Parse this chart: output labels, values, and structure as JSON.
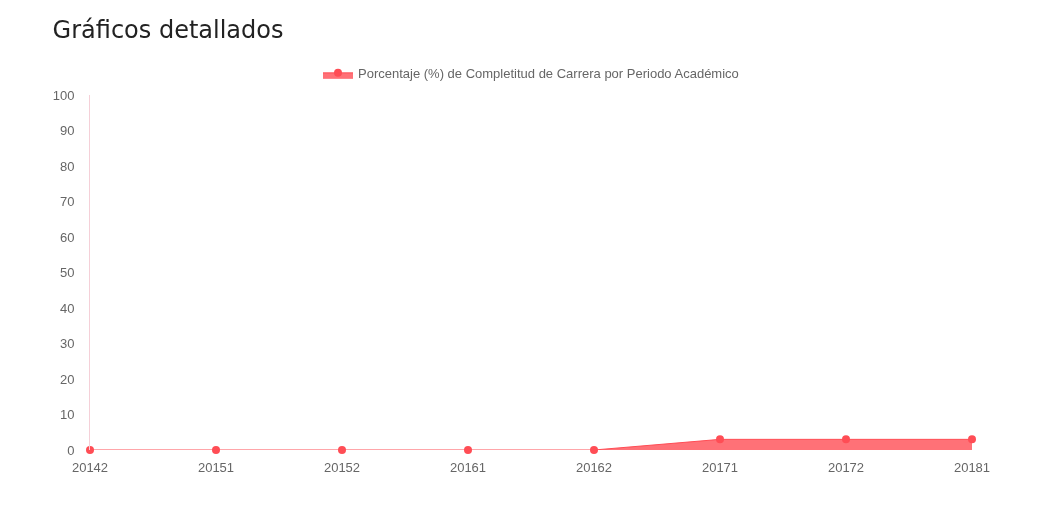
{
  "chart_data": {
    "type": "area",
    "title": "Gráficos detallados",
    "categories": [
      "20142",
      "20151",
      "20152",
      "20161",
      "20162",
      "20171",
      "20172",
      "20181"
    ],
    "series": [
      {
        "name": "Porcentaje (%) de Completitud de Carrera por Periodo Académico",
        "color": "#ff4d55",
        "values": [
          0,
          0,
          0,
          0,
          0,
          3,
          3,
          3
        ]
      }
    ],
    "ylim": [
      0,
      100
    ],
    "yticks": [
      0,
      10,
      20,
      30,
      40,
      50,
      60,
      70,
      80,
      90,
      100
    ],
    "legend": "top",
    "marker": "circle"
  }
}
